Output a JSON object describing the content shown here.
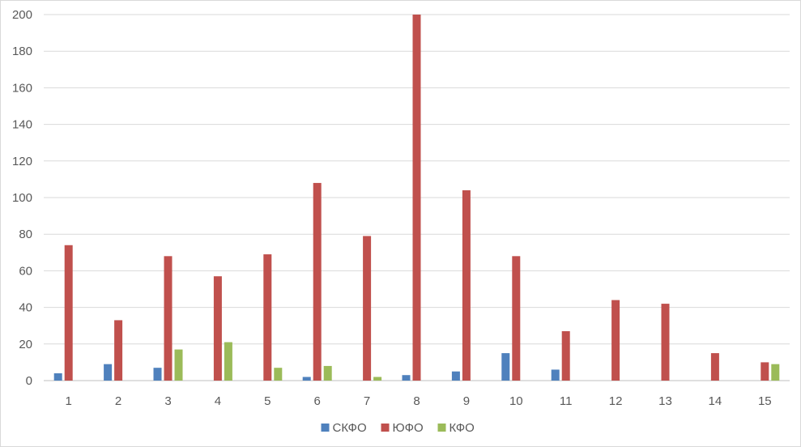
{
  "chart_data": {
    "type": "bar",
    "title": "",
    "xlabel": "",
    "ylabel": "",
    "categories": [
      "1",
      "2",
      "3",
      "4",
      "5",
      "6",
      "7",
      "8",
      "9",
      "10",
      "11",
      "12",
      "13",
      "14",
      "15"
    ],
    "ylim": [
      0,
      200
    ],
    "yticks": [
      0,
      20,
      40,
      60,
      80,
      100,
      120,
      140,
      160,
      180,
      200
    ],
    "grid": true,
    "legend_position": "bottom",
    "series": [
      {
        "name": "СКФО",
        "color": "#4f81bd",
        "values": [
          4,
          9,
          7,
          0,
          0,
          2,
          0,
          3,
          5,
          15,
          6,
          0,
          0,
          0,
          0
        ]
      },
      {
        "name": "ЮФО",
        "color": "#c0504d",
        "values": [
          74,
          33,
          68,
          57,
          69,
          108,
          79,
          200,
          104,
          68,
          27,
          44,
          42,
          15,
          10
        ]
      },
      {
        "name": "КФО",
        "color": "#9bbb59",
        "values": [
          0,
          0,
          17,
          21,
          7,
          8,
          2,
          0,
          0,
          0,
          0,
          0,
          0,
          0,
          9
        ]
      }
    ]
  }
}
